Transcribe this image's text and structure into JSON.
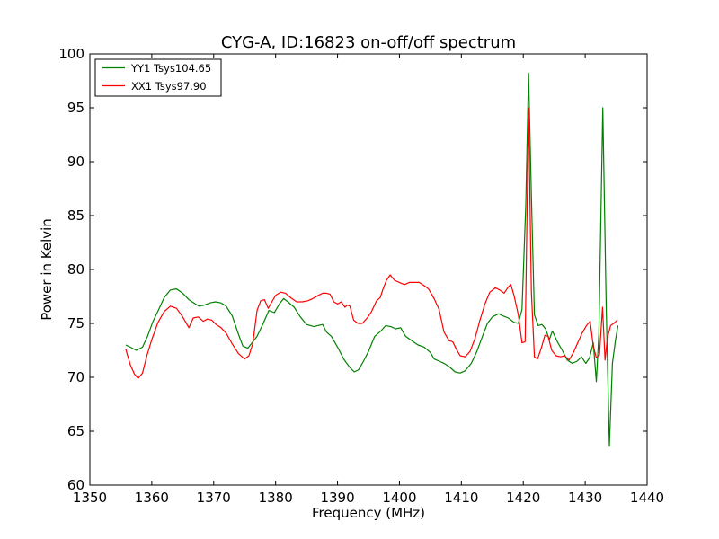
{
  "chart_data": {
    "type": "line",
    "title": "CYG-A, ID:16823 on-off/off spectrum",
    "xlabel": "Frequency (MHz)",
    "ylabel": "Power in Kelvin",
    "xlim": [
      1350,
      1440
    ],
    "ylim": [
      60,
      100
    ],
    "xticks": [
      1350,
      1360,
      1370,
      1380,
      1390,
      1400,
      1410,
      1420,
      1430,
      1440
    ],
    "yticks": [
      60,
      65,
      70,
      75,
      80,
      85,
      90,
      95,
      100
    ],
    "grid": false,
    "legend_position": "top-left",
    "series": [
      {
        "name": "YY1 Tsys104.65",
        "color": "#008000",
        "x": [
          1355.8,
          1356.5,
          1357.5,
          1358.5,
          1359.3,
          1360.2,
          1361.2,
          1362.0,
          1363.0,
          1364.0,
          1365.0,
          1366.0,
          1366.8,
          1367.6,
          1368.5,
          1369.4,
          1370.3,
          1371.2,
          1372.0,
          1373.0,
          1374.0,
          1374.7,
          1375.5,
          1376.2,
          1377.0,
          1378.0,
          1378.9,
          1379.8,
          1380.6,
          1381.3,
          1382.0,
          1383.0,
          1384.0,
          1385.0,
          1386.2,
          1386.8,
          1387.6,
          1388.2,
          1389.0,
          1390.0,
          1391.0,
          1392.0,
          1392.7,
          1393.4,
          1394.2,
          1395.0,
          1396.0,
          1397.0,
          1397.8,
          1398.6,
          1399.4,
          1400.2,
          1401.0,
          1402.0,
          1403.0,
          1404.0,
          1405.0,
          1405.6,
          1406.4,
          1407.2,
          1408.0,
          1409.0,
          1409.8,
          1410.6,
          1411.6,
          1412.5,
          1413.4,
          1414.2,
          1415.0,
          1416.0,
          1416.7,
          1417.6,
          1418.5,
          1419.2,
          1419.8,
          1420.4,
          1420.85,
          1421.3,
          1421.8,
          1422.4,
          1423.0,
          1423.6,
          1424.2,
          1424.7,
          1425.5,
          1426.3,
          1427.1,
          1427.9,
          1428.7,
          1429.4,
          1430.1,
          1430.7,
          1431.3,
          1431.8,
          1432.2,
          1432.85,
          1433.4,
          1433.9,
          1434.4,
          1434.9,
          1435.3
        ],
        "y": [
          73.0,
          72.8,
          72.5,
          72.8,
          73.8,
          75.2,
          76.4,
          77.4,
          78.1,
          78.2,
          77.8,
          77.2,
          76.9,
          76.6,
          76.7,
          76.9,
          77.0,
          76.9,
          76.6,
          75.7,
          74.0,
          72.9,
          72.7,
          73.2,
          73.8,
          75.0,
          76.2,
          76.0,
          76.8,
          77.3,
          77.0,
          76.5,
          75.6,
          74.9,
          74.7,
          74.8,
          74.9,
          74.2,
          73.8,
          72.8,
          71.7,
          70.9,
          70.5,
          70.7,
          71.5,
          72.4,
          73.8,
          74.3,
          74.8,
          74.7,
          74.5,
          74.6,
          73.8,
          73.4,
          73.0,
          72.8,
          72.3,
          71.7,
          71.5,
          71.3,
          71.0,
          70.5,
          70.4,
          70.6,
          71.3,
          72.4,
          73.8,
          75.0,
          75.6,
          75.9,
          75.7,
          75.5,
          75.1,
          75.0,
          76.3,
          86.0,
          98.2,
          87.0,
          75.8,
          74.8,
          74.9,
          74.5,
          73.5,
          74.3,
          73.3,
          72.5,
          71.6,
          71.3,
          71.5,
          71.9,
          71.3,
          71.8,
          73.2,
          69.6,
          74.0,
          95.0,
          76.5,
          63.6,
          71.3,
          73.5,
          74.8
        ]
      },
      {
        "name": "XX1 Tsys97.90",
        "color": "#ff0000",
        "x": [
          1355.8,
          1356.5,
          1357.2,
          1357.8,
          1358.5,
          1359.2,
          1360.0,
          1361.0,
          1362.0,
          1363.0,
          1364.0,
          1365.0,
          1366.0,
          1366.7,
          1367.5,
          1368.3,
          1369.0,
          1369.7,
          1370.4,
          1371.2,
          1372.0,
          1373.0,
          1374.0,
          1375.0,
          1375.7,
          1376.3,
          1377.0,
          1377.6,
          1378.2,
          1378.8,
          1379.4,
          1380.0,
          1380.8,
          1381.6,
          1382.4,
          1383.4,
          1384.3,
          1385.2,
          1386.0,
          1386.9,
          1387.6,
          1388.2,
          1388.8,
          1389.4,
          1390.0,
          1390.6,
          1391.2,
          1391.6,
          1392.0,
          1392.6,
          1393.3,
          1394.0,
          1394.8,
          1395.5,
          1396.3,
          1396.9,
          1397.3,
          1397.9,
          1398.5,
          1399.2,
          1400.0,
          1400.8,
          1401.6,
          1402.4,
          1403.2,
          1404.0,
          1404.7,
          1405.6,
          1406.4,
          1407.2,
          1408.0,
          1408.6,
          1409.2,
          1409.8,
          1410.6,
          1411.4,
          1412.2,
          1413.0,
          1413.8,
          1414.6,
          1415.5,
          1416.2,
          1416.9,
          1417.6,
          1418.0,
          1418.5,
          1419.2,
          1419.8,
          1420.3,
          1420.85,
          1421.3,
          1421.8,
          1422.3,
          1422.9,
          1423.5,
          1424.0,
          1424.6,
          1425.3,
          1426.0,
          1426.7,
          1427.4,
          1428.1,
          1428.8,
          1429.5,
          1430.2,
          1430.8,
          1431.3,
          1431.8,
          1432.3,
          1432.8,
          1433.2,
          1433.6,
          1434.1,
          1434.6,
          1435.2
        ],
        "y": [
          72.6,
          71.2,
          70.3,
          69.9,
          70.4,
          72.0,
          73.5,
          75.1,
          76.1,
          76.6,
          76.4,
          75.6,
          74.6,
          75.5,
          75.6,
          75.2,
          75.4,
          75.3,
          74.9,
          74.6,
          74.1,
          73.1,
          72.2,
          71.7,
          72.0,
          73.1,
          76.2,
          77.1,
          77.2,
          76.4,
          77.0,
          77.6,
          77.9,
          77.8,
          77.4,
          77.0,
          77.0,
          77.1,
          77.3,
          77.6,
          77.8,
          77.8,
          77.7,
          77.0,
          76.8,
          77.0,
          76.5,
          76.7,
          76.6,
          75.3,
          75.0,
          75.0,
          75.5,
          76.1,
          77.1,
          77.4,
          78.1,
          79.0,
          79.5,
          79.0,
          78.8,
          78.6,
          78.8,
          78.8,
          78.8,
          78.5,
          78.2,
          77.3,
          76.3,
          74.2,
          73.4,
          73.3,
          72.6,
          72.0,
          71.9,
          72.4,
          73.6,
          75.3,
          76.8,
          77.9,
          78.3,
          78.1,
          77.8,
          78.4,
          78.6,
          77.6,
          75.8,
          73.2,
          73.3,
          95.0,
          78.0,
          71.9,
          71.7,
          72.7,
          73.9,
          73.8,
          72.5,
          72.0,
          71.9,
          72.0,
          71.6,
          72.3,
          73.2,
          74.1,
          74.8,
          75.2,
          72.9,
          71.8,
          72.1,
          76.5,
          71.6,
          73.7,
          74.8,
          75.0,
          75.3
        ]
      }
    ]
  }
}
